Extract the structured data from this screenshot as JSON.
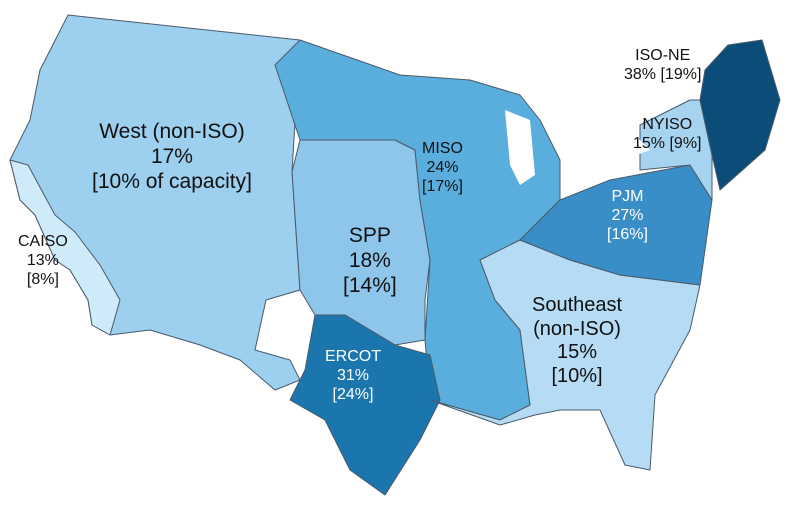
{
  "regions": [
    {
      "id": "west",
      "name": "West (non-ISO)",
      "pct": "17%",
      "note": "[10% of capacity]",
      "color": "#9dcfef"
    },
    {
      "id": "caiso",
      "name": "CAISO",
      "pct": "13%",
      "note": "[8%]",
      "color": "#cfeaf8"
    },
    {
      "id": "spp",
      "name": "SPP",
      "pct": "18%",
      "note": "[14%]",
      "color": "#8ec5eb"
    },
    {
      "id": "miso",
      "name": "MISO",
      "pct": "24%",
      "note": "[17%]",
      "color": "#5aaedd"
    },
    {
      "id": "ercot",
      "name": "ERCOT",
      "pct": "31%",
      "note": "[24%]",
      "color": "#1c76ae"
    },
    {
      "id": "pjm",
      "name": "PJM",
      "pct": "27%",
      "note": "[16%]",
      "color": "#3a8ec7"
    },
    {
      "id": "nyiso",
      "name": "NYISO",
      "pct": "15% [9%]",
      "note": "",
      "color": "#a6d4f0"
    },
    {
      "id": "isone",
      "name": "ISO-NE",
      "pct": "38% [19%]",
      "note": "",
      "color": "#0c4c78"
    },
    {
      "id": "southeast",
      "name": "Southeast",
      "pct": "(non-ISO)",
      "note": "15%",
      "extra": "[10%]",
      "color": "#b5dcf4"
    }
  ]
}
